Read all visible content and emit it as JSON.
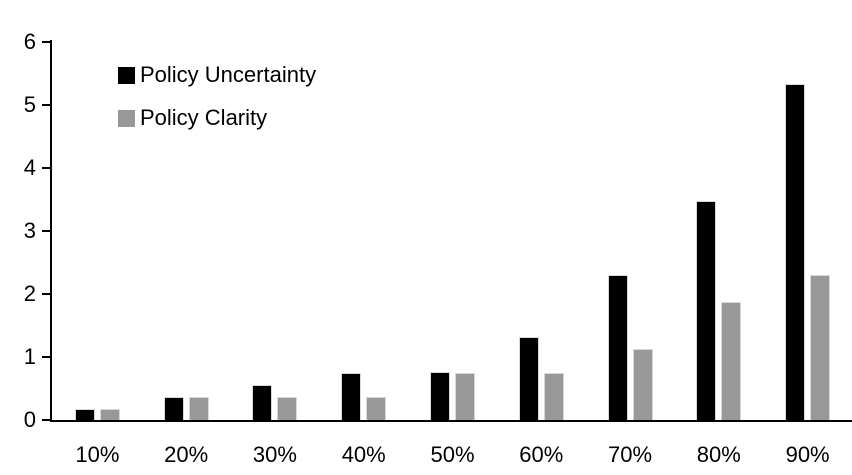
{
  "chart_data": {
    "type": "bar",
    "title": "",
    "xlabel": "",
    "ylabel": "",
    "categories": [
      "10%",
      "20%",
      "30%",
      "40%",
      "50%",
      "60%",
      "70%",
      "80%",
      "90%"
    ],
    "series": [
      {
        "name": "Policy Uncertainty",
        "color": "#000000",
        "values": [
          0.18,
          0.37,
          0.56,
          0.74,
          0.76,
          1.31,
          2.3,
          3.48,
          5.33
        ]
      },
      {
        "name": "Policy Clarity",
        "color": "#989898",
        "values": [
          0.18,
          0.37,
          0.37,
          0.37,
          0.74,
          0.74,
          1.12,
          1.87,
          2.3
        ]
      }
    ],
    "ylim": [
      0,
      6
    ],
    "yticks": [
      "0",
      "1",
      "2",
      "3",
      "4",
      "5",
      "6"
    ],
    "grid": false,
    "legend_position": "upper-left-inside",
    "background": "#ffffff",
    "axis_color": "#000000"
  }
}
